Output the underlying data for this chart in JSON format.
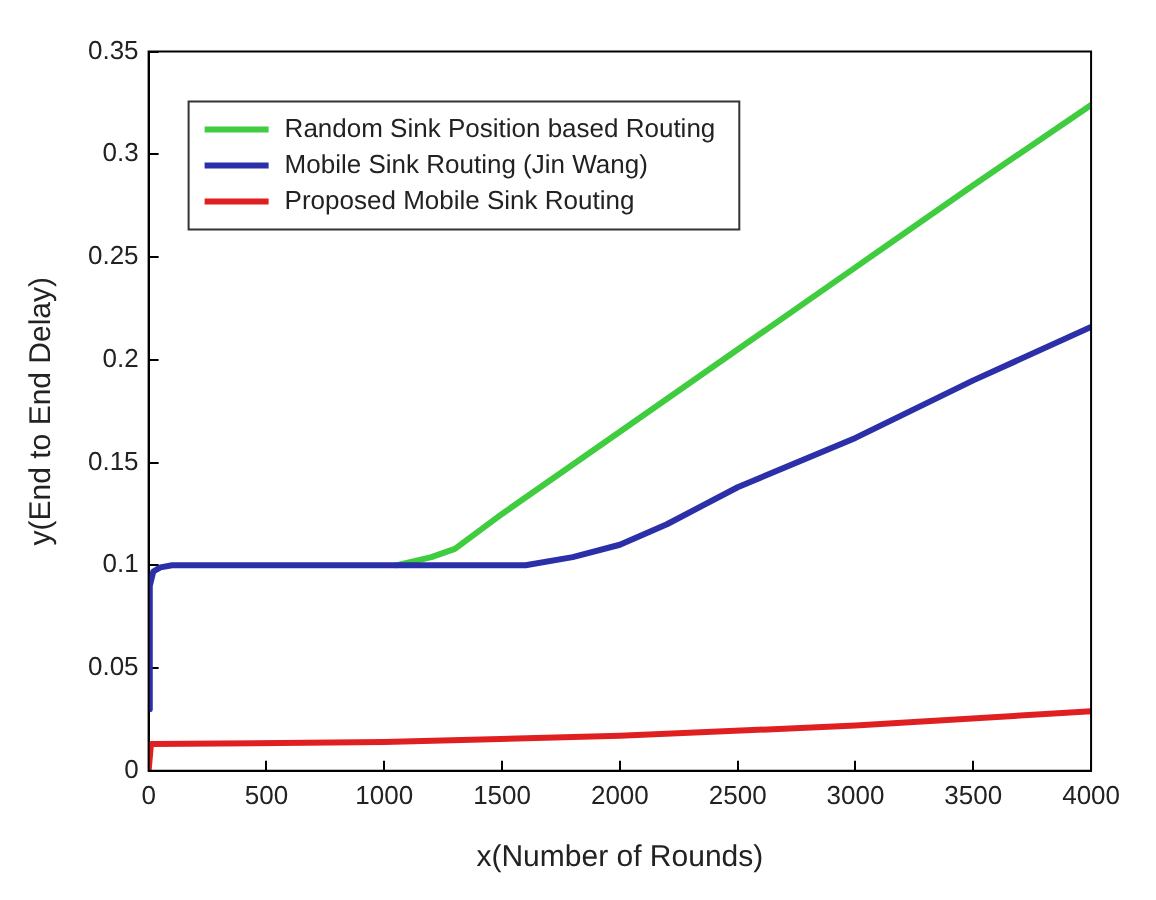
{
  "chart_data": {
    "type": "line",
    "xlabel": "x(Number of Rounds)",
    "ylabel": "y(End to End Delay)",
    "xlim": [
      0,
      4000
    ],
    "ylim": [
      0,
      0.35
    ],
    "xticks": [
      0,
      500,
      1000,
      1500,
      2000,
      2500,
      3000,
      3500,
      4000
    ],
    "yticks": [
      0,
      0.05,
      0.1,
      0.15,
      0.2,
      0.25,
      0.3,
      0.35
    ],
    "legend": "top left",
    "marker": "none",
    "line_style": "solid",
    "series": [
      {
        "name": "Random Sink Position based Routing",
        "color": "#3fcc3f",
        "x": [
          1050,
          1200,
          1300,
          1500,
          2000,
          2500,
          3000,
          3500,
          4000
        ],
        "values": [
          0.1,
          0.104,
          0.108,
          0.125,
          0.165,
          0.205,
          0.245,
          0.285,
          0.324
        ]
      },
      {
        "name": "Mobile Sink Routing (Jin Wang)",
        "color": "#2b2fa8",
        "x": [
          0,
          5,
          20,
          50,
          100,
          500,
          1000,
          1600,
          1800,
          2000,
          2200,
          2500,
          3000,
          3500,
          4000
        ],
        "values": [
          0.03,
          0.09,
          0.097,
          0.099,
          0.1,
          0.1,
          0.1,
          0.1,
          0.104,
          0.11,
          0.12,
          0.138,
          0.162,
          0.19,
          0.216
        ]
      },
      {
        "name": "Proposed Mobile Sink Routing",
        "color": "#e02020",
        "x": [
          0,
          10,
          1000,
          2000,
          3000,
          4000
        ],
        "values": [
          0,
          0.013,
          0.014,
          0.017,
          0.022,
          0.029
        ]
      }
    ]
  }
}
